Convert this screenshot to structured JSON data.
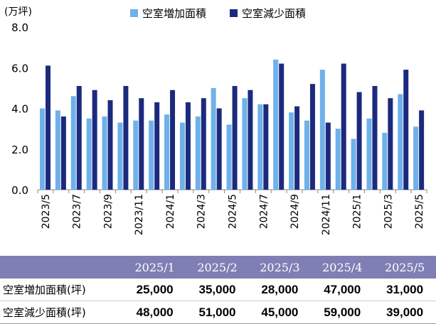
{
  "chart_data": {
    "type": "bar",
    "unit_label": "(万坪)",
    "categories": [
      "2023/5",
      "2023/6",
      "2023/7",
      "2023/8",
      "2023/9",
      "2023/10",
      "2023/11",
      "2023/12",
      "2024/1",
      "2024/2",
      "2024/3",
      "2024/4",
      "2024/5",
      "2024/6",
      "2024/7",
      "2024/8",
      "2024/9",
      "2024/10",
      "2024/11",
      "2024/12",
      "2025/1",
      "2025/2",
      "2025/3",
      "2025/4",
      "2025/5"
    ],
    "tick_labels": [
      "2023/5",
      "2023/7",
      "2023/9",
      "2023/11",
      "2024/1",
      "2024/3",
      "2024/5",
      "2024/7",
      "2024/9",
      "2024/11",
      "2025/1",
      "2025/3",
      "2025/5"
    ],
    "y_ticks": [
      "0.0",
      "2.0",
      "4.0",
      "6.0",
      "8.0"
    ],
    "ylim": [
      0,
      8
    ],
    "series": [
      {
        "name": "空室増加面積",
        "color": "#6fb1ea",
        "values": [
          4.0,
          3.9,
          4.6,
          3.5,
          3.6,
          3.3,
          3.4,
          3.4,
          3.7,
          3.3,
          3.6,
          5.0,
          3.2,
          4.5,
          4.2,
          6.4,
          3.8,
          3.4,
          5.9,
          3.0,
          2.5,
          3.5,
          2.8,
          4.7,
          3.1
        ]
      },
      {
        "name": "空室減少面積",
        "color": "#1c2a7e",
        "values": [
          6.1,
          3.6,
          5.1,
          4.9,
          4.4,
          5.1,
          4.5,
          4.3,
          4.9,
          4.3,
          4.5,
          4.0,
          5.1,
          4.9,
          4.2,
          6.2,
          4.1,
          5.2,
          3.3,
          6.2,
          4.8,
          5.1,
          4.5,
          5.9,
          3.9
        ]
      }
    ]
  },
  "table": {
    "columns": [
      "2025/1",
      "2025/2",
      "2025/3",
      "2025/4",
      "2025/5"
    ],
    "rows": [
      {
        "label": "空室増加面積(坪)",
        "values": [
          "25,000",
          "35,000",
          "28,000",
          "47,000",
          "31,000"
        ]
      },
      {
        "label": "空室減少面積(坪)",
        "values": [
          "48,000",
          "51,000",
          "45,000",
          "59,000",
          "39,000"
        ]
      }
    ]
  }
}
